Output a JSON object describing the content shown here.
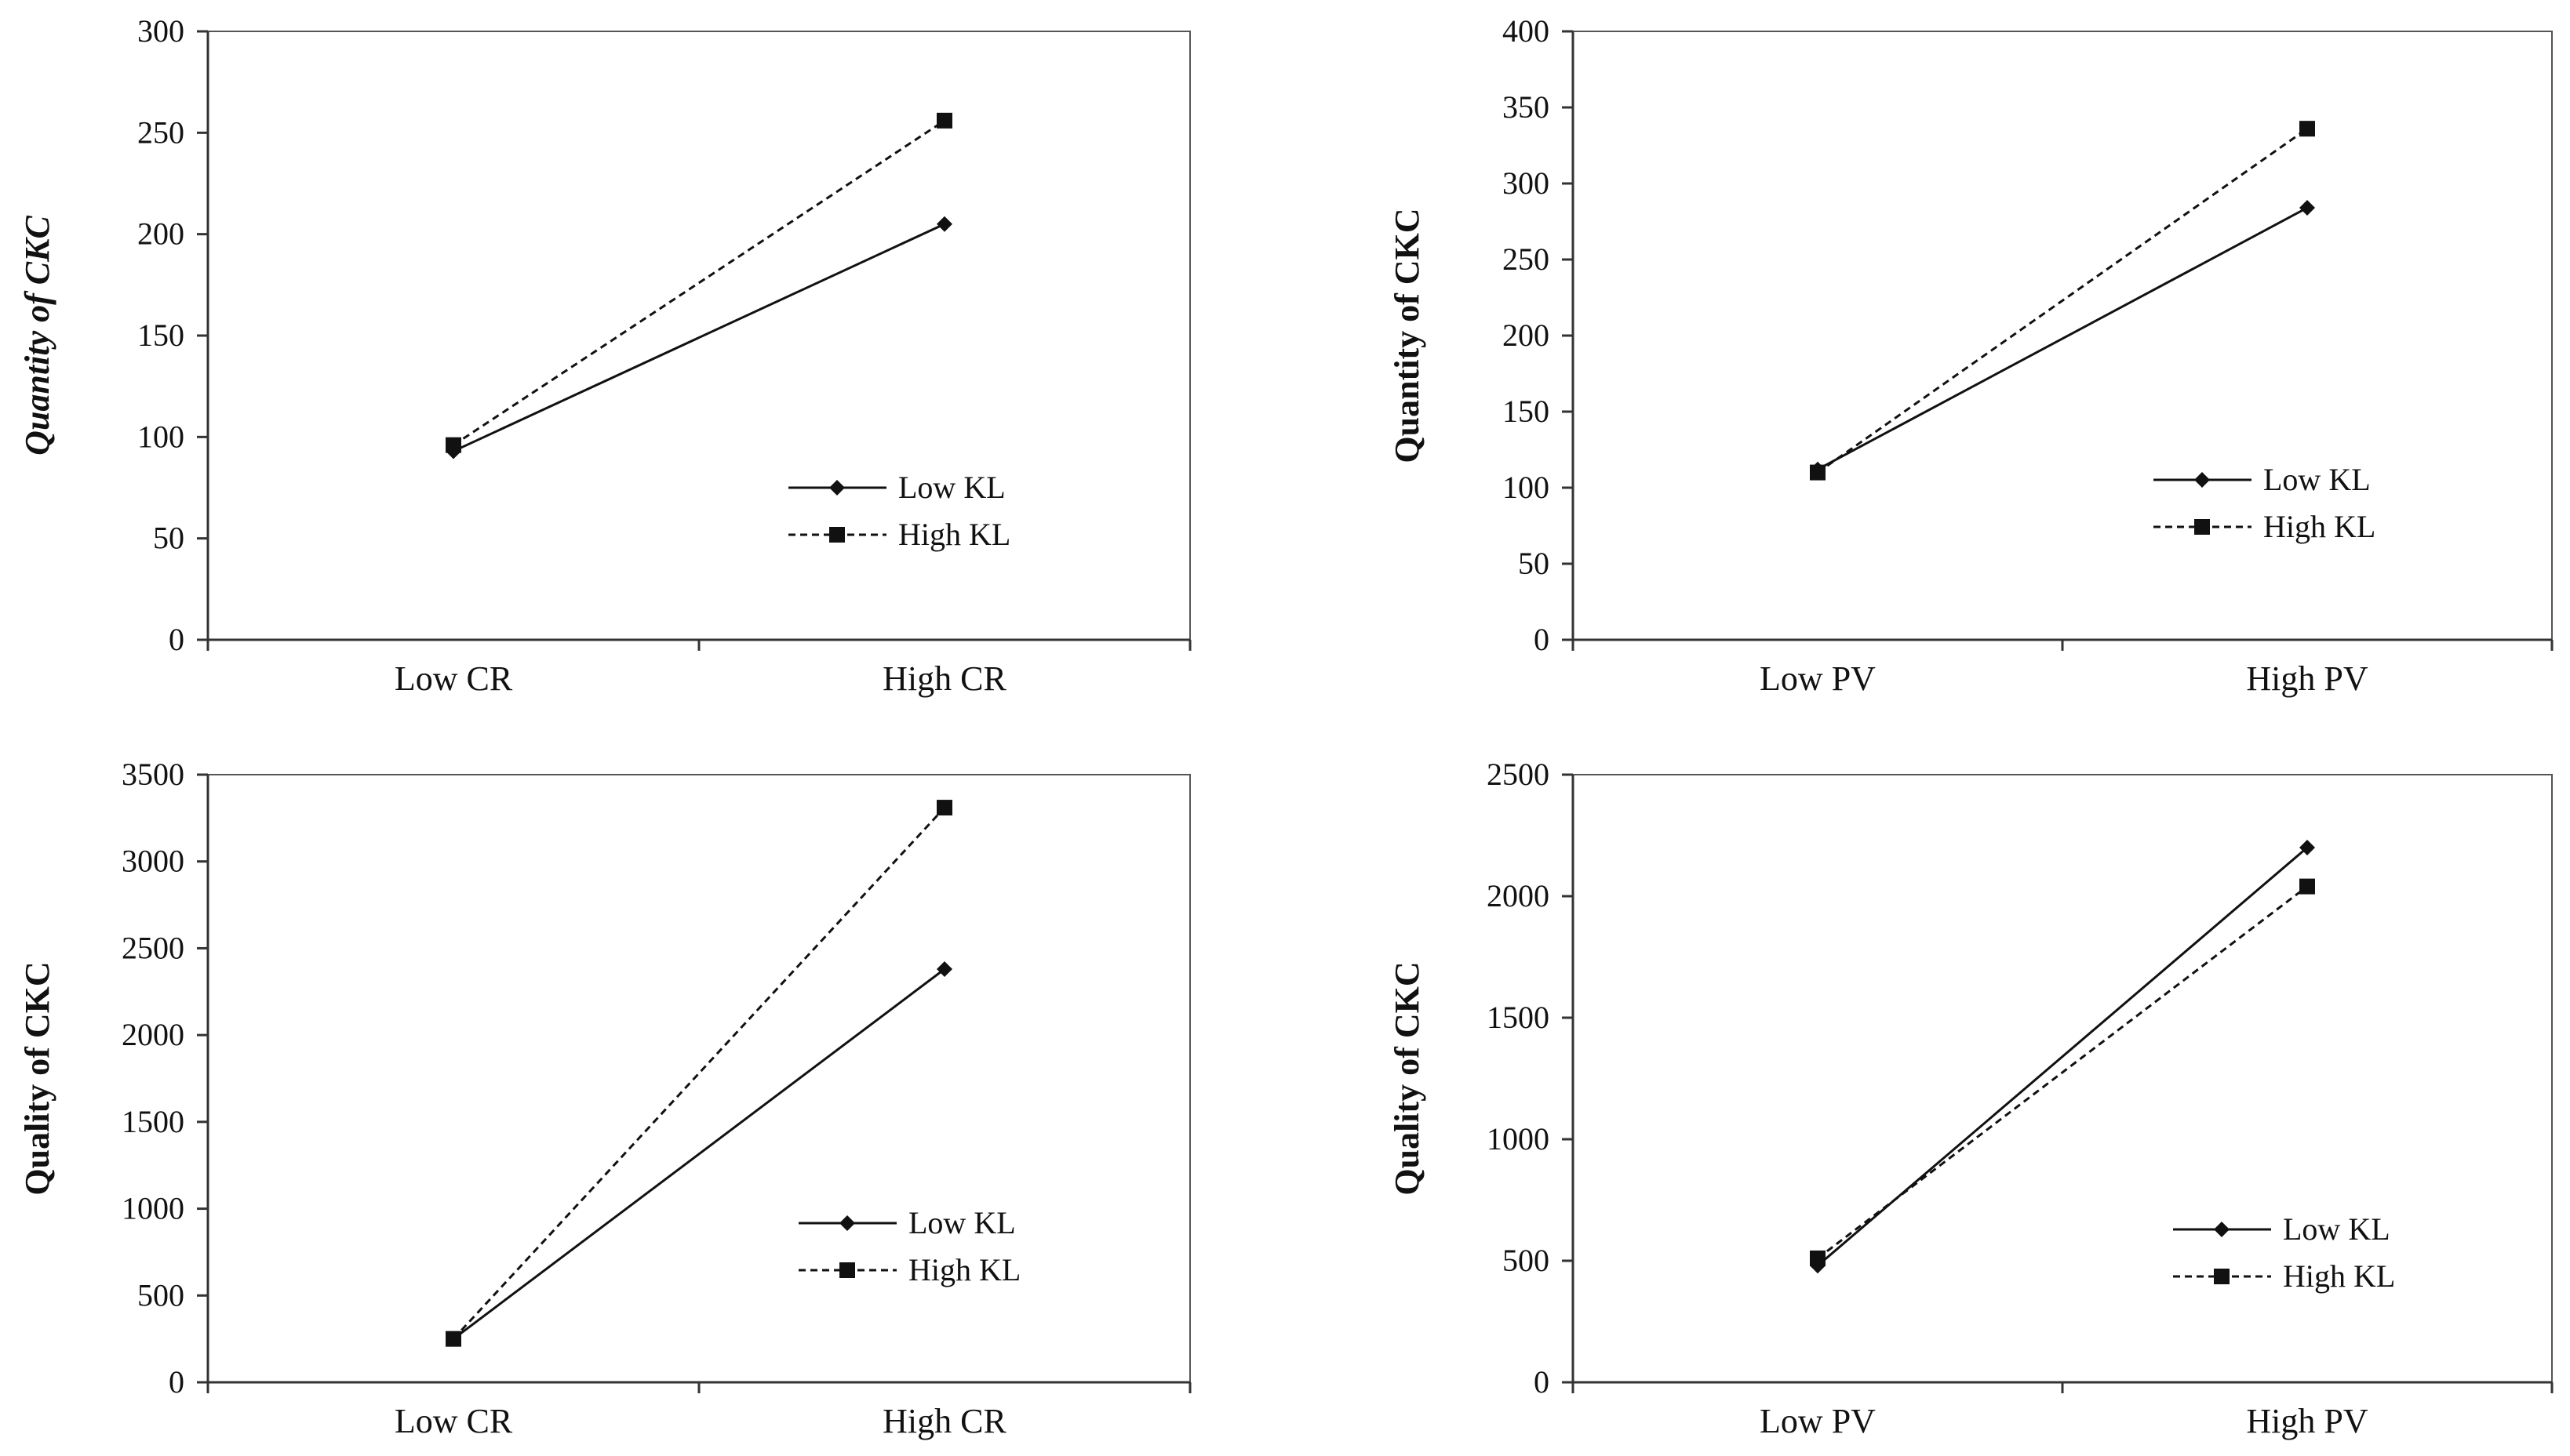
{
  "chart_data": [
    {
      "type": "line",
      "ylabel": "Quantity of CKC",
      "ylabel_italic": true,
      "categories": [
        "Low CR",
        "High CR"
      ],
      "ylim": [
        0,
        300
      ],
      "yticks": [
        0,
        50,
        100,
        150,
        200,
        250,
        300
      ],
      "ytick_labels": [
        "0",
        "50",
        "100",
        "150",
        "200",
        "250",
        "300"
      ],
      "legend_position": "lower-right",
      "series": [
        {
          "name": "Low KL",
          "values": [
            93,
            205
          ],
          "style": "solid",
          "marker": "diamond"
        },
        {
          "name": "High KL",
          "values": [
            96,
            256
          ],
          "style": "dashed",
          "marker": "square"
        }
      ]
    },
    {
      "type": "line",
      "ylabel": "Quantity of CKC",
      "ylabel_italic": false,
      "categories": [
        "Low PV",
        "High PV"
      ],
      "ylim": [
        0,
        400
      ],
      "yticks": [
        0,
        50,
        100,
        150,
        200,
        250,
        300,
        350,
        400
      ],
      "ytick_labels": [
        "0",
        "50",
        "100",
        "150",
        "200",
        "250",
        "300",
        "350",
        "400"
      ],
      "legend_position": "lower-right",
      "series": [
        {
          "name": "Low KL",
          "values": [
            112,
            284
          ],
          "style": "solid",
          "marker": "diamond"
        },
        {
          "name": "High KL",
          "values": [
            110,
            336
          ],
          "style": "dashed",
          "marker": "square"
        }
      ]
    },
    {
      "type": "line",
      "ylabel": "Quality of CKC",
      "ylabel_italic": false,
      "categories": [
        "Low CR",
        "High CR"
      ],
      "ylim": [
        0,
        3500
      ],
      "yticks": [
        0,
        500,
        1000,
        1500,
        2000,
        2500,
        3000,
        3500
      ],
      "ytick_labels": [
        "0",
        "500",
        "1000",
        "1500",
        "2000",
        "2500",
        "3000",
        "3500"
      ],
      "legend_position": "lower-right",
      "series": [
        {
          "name": "Low KL",
          "values": [
            250,
            2380
          ],
          "style": "solid",
          "marker": "diamond"
        },
        {
          "name": "High KL",
          "values": [
            250,
            3310
          ],
          "style": "dashed",
          "marker": "square"
        }
      ]
    },
    {
      "type": "line",
      "ylabel": "Quality of CKC",
      "ylabel_italic": false,
      "categories": [
        "Low PV",
        "High PV"
      ],
      "ylim": [
        0,
        2500
      ],
      "yticks": [
        0,
        500,
        1000,
        1500,
        2000,
        2500
      ],
      "ytick_labels": [
        "0",
        "500",
        "1000",
        "1500",
        "2000",
        "2500"
      ],
      "legend_position": "lower-right",
      "series": [
        {
          "name": "Low KL",
          "values": [
            480,
            2200
          ],
          "style": "solid",
          "marker": "diamond"
        },
        {
          "name": "High KL",
          "values": [
            510,
            2040
          ],
          "style": "dashed",
          "marker": "square"
        }
      ]
    }
  ]
}
